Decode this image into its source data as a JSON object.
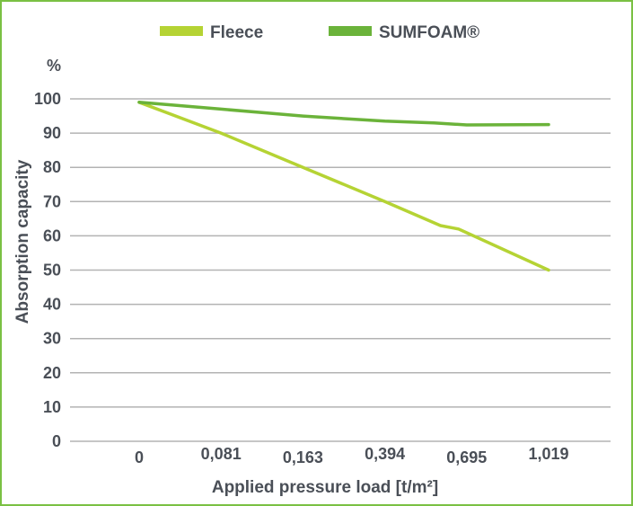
{
  "chart_data": {
    "type": "line",
    "title": "",
    "xlabel": "Applied pressure load [t/m²]",
    "ylabel": "Absorption capacity",
    "y_unit": "%",
    "ylim": [
      0,
      100
    ],
    "yticks": [
      0,
      10,
      20,
      30,
      40,
      50,
      60,
      70,
      80,
      90,
      100
    ],
    "categories": [
      "0",
      "0,081",
      "0,163",
      "0,394",
      "0,695",
      "1,019"
    ],
    "grid": true,
    "legend_position": "top",
    "series": [
      {
        "name": "Fleece",
        "color": "#b5d334",
        "x": [
          0,
          1,
          2,
          3,
          3.68,
          3.9,
          5
        ],
        "values": [
          99,
          90,
          80,
          70,
          63,
          62,
          50
        ]
      },
      {
        "name": "SUMFOAM®",
        "color": "#6bb33a",
        "x": [
          0,
          1,
          2,
          3,
          3.6,
          4,
          5
        ],
        "values": [
          99,
          97,
          95,
          93.5,
          93,
          92.4,
          92.5
        ]
      }
    ]
  }
}
